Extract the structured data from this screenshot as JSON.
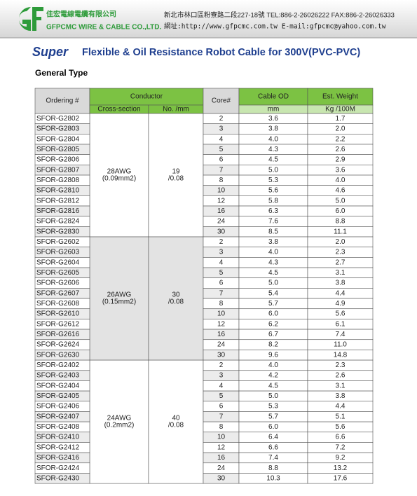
{
  "header": {
    "company_cn": "佳宏電線電纜有限公司",
    "company_en": "GFPCMC WIRE & CABLE CO.,LTD.",
    "address_line": "新北市林口區粉寮路二段227-18號 TEL:886-2-26026222 FAX:886-2-26026333",
    "web_line": "網址:http://www.gfpcmc.com.tw  E-mail:gfpcmc@yahoo.com.tw"
  },
  "title": {
    "brand": "Super",
    "text": "Flexible & Oil Resistance Robot Cable for 300V(PVC-PVC)"
  },
  "subtitle": "General Type",
  "table": {
    "headers": {
      "ordering": "Ordering #",
      "conductor": "Conductor",
      "cross_section": "Cross-section",
      "strands": "No. /mm",
      "core": "Core#",
      "cable_od": "Cable OD",
      "weight": "Est. Weight",
      "od_unit": "mm",
      "weight_unit": "Kg /100M"
    },
    "groups": [
      {
        "cross_section": [
          "28AWG",
          "(0.09mm2)"
        ],
        "strands": [
          "19",
          "/0.08"
        ],
        "rows": [
          [
            "SFOR-G2802",
            "2",
            "3.6",
            "1.7"
          ],
          [
            "SFOR-G2803",
            "3",
            "3.8",
            "2.0"
          ],
          [
            "SFOR-G2804",
            "4",
            "4.0",
            "2.2"
          ],
          [
            "SFOR-G2805",
            "5",
            "4.3",
            "2.6"
          ],
          [
            "SFOR-G2806",
            "6",
            "4.5",
            "2.9"
          ],
          [
            "SFOR-G2807",
            "7",
            "5.0",
            "3.6"
          ],
          [
            "SFOR-G2808",
            "8",
            "5.3",
            "4.0"
          ],
          [
            "SFOR-G2810",
            "10",
            "5.6",
            "4.6"
          ],
          [
            "SFOR-G2812",
            "12",
            "5.8",
            "5.0"
          ],
          [
            "SFOR-G2816",
            "16",
            "6.3",
            "6.0"
          ],
          [
            "SFOR-G2824",
            "24",
            "7.6",
            "8.8"
          ],
          [
            "SFOR-G2830",
            "30",
            "8.5",
            "11.1"
          ]
        ]
      },
      {
        "cross_section": [
          "26AWG",
          "(0.15mm2)"
        ],
        "strands": [
          "30",
          "/0.08"
        ],
        "rows": [
          [
            "SFOR-G2602",
            "2",
            "3.8",
            "2.0"
          ],
          [
            "SFOR-G2603",
            "3",
            "4.0",
            "2.3"
          ],
          [
            "SFOR-G2604",
            "4",
            "4.3",
            "2.7"
          ],
          [
            "SFOR-G2605",
            "5",
            "4.5",
            "3.1"
          ],
          [
            "SFOR-G2606",
            "6",
            "5.0",
            "3.8"
          ],
          [
            "SFOR-G2607",
            "7",
            "5.4",
            "4.4"
          ],
          [
            "SFOR-G2608",
            "8",
            "5.7",
            "4.9"
          ],
          [
            "SFOR-G2610",
            "10",
            "6.0",
            "5.6"
          ],
          [
            "SFOR-G2612",
            "12",
            "6.2",
            "6.1"
          ],
          [
            "SFOR-G2616",
            "16",
            "6.7",
            "7.4"
          ],
          [
            "SFOR-G2624",
            "24",
            "8.2",
            "11.0"
          ],
          [
            "SFOR-G2630",
            "30",
            "9.6",
            "14.8"
          ]
        ]
      },
      {
        "cross_section": [
          "24AWG",
          "(0.2mm2)"
        ],
        "strands": [
          "40",
          "/0.08"
        ],
        "rows": [
          [
            "SFOR-G2402",
            "2",
            "4.0",
            "2.3"
          ],
          [
            "SFOR-G2403",
            "3",
            "4.2",
            "2.6"
          ],
          [
            "SFOR-G2404",
            "4",
            "4.5",
            "3.1"
          ],
          [
            "SFOR-G2405",
            "5",
            "5.0",
            "3.8"
          ],
          [
            "SFOR-G2406",
            "6",
            "5.3",
            "4.4"
          ],
          [
            "SFOR-G2407",
            "7",
            "5.7",
            "5.1"
          ],
          [
            "SFOR-G2408",
            "8",
            "6.0",
            "5.6"
          ],
          [
            "SFOR-G2410",
            "10",
            "6.4",
            "6.6"
          ],
          [
            "SFOR-G2412",
            "12",
            "6.6",
            "7.2"
          ],
          [
            "SFOR-G2416",
            "16",
            "7.4",
            "9.2"
          ],
          [
            "SFOR-G2424",
            "24",
            "8.8",
            "13.2"
          ],
          [
            "SFOR-G2430",
            "30",
            "10.3",
            "17.6"
          ]
        ]
      }
    ]
  }
}
